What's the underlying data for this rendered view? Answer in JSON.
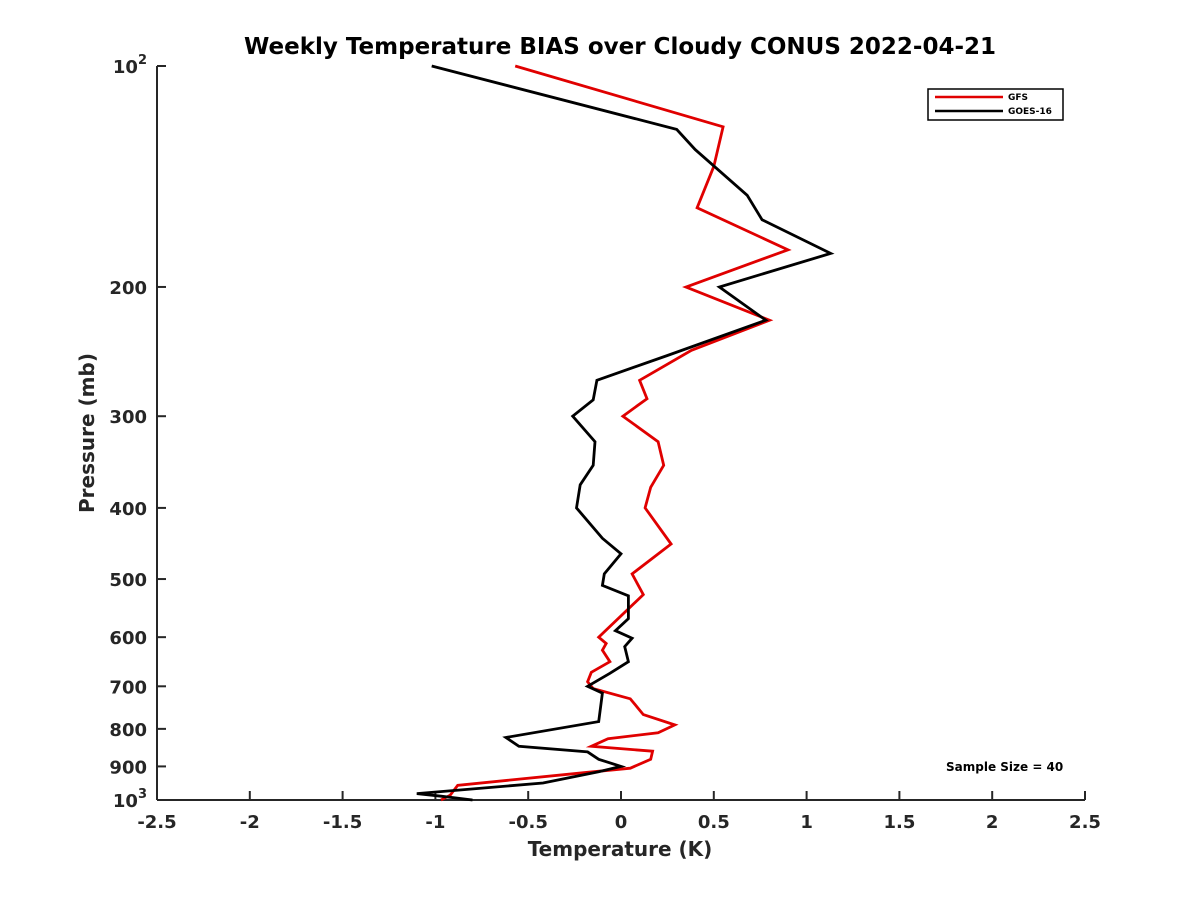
{
  "chart_data": {
    "type": "line",
    "title": "Weekly Temperature BIAS over Cloudy CONUS 2022-04-21",
    "xlabel": "Temperature (K)",
    "ylabel": "Pressure (mb)",
    "xlim": [
      -2.5,
      2.5
    ],
    "ylim": [
      1000,
      100
    ],
    "y_scale": "log",
    "y_reversed": true,
    "grid": false,
    "legend_position": "top-right",
    "x_ticks": [
      "-2.5",
      "-2",
      "-1.5",
      "-1",
      "-0.5",
      "0",
      "0.5",
      "1",
      "1.5",
      "2",
      "2.5"
    ],
    "x_tick_values": [
      -2.5,
      -2,
      -1.5,
      -1,
      -0.5,
      0,
      0.5,
      1,
      1.5,
      2,
      2.5
    ],
    "y_ticks": [
      {
        "value": 100,
        "base": "10",
        "exp": "2"
      },
      {
        "value": 200,
        "label": "200"
      },
      {
        "value": 300,
        "label": "300"
      },
      {
        "value": 400,
        "label": "400"
      },
      {
        "value": 500,
        "label": "500"
      },
      {
        "value": 600,
        "label": "600"
      },
      {
        "value": 700,
        "label": "700"
      },
      {
        "value": 800,
        "label": "800"
      },
      {
        "value": 900,
        "label": "900"
      },
      {
        "value": 1000,
        "base": "10",
        "exp": "3"
      }
    ],
    "series": [
      {
        "name": "GFS",
        "color": "#e00000",
        "points": [
          {
            "x": -0.57,
            "y": 100
          },
          {
            "x": 0.55,
            "y": 121
          },
          {
            "x": 0.5,
            "y": 137
          },
          {
            "x": 0.41,
            "y": 156
          },
          {
            "x": 0.9,
            "y": 178
          },
          {
            "x": 0.35,
            "y": 200
          },
          {
            "x": 0.8,
            "y": 222
          },
          {
            "x": 0.38,
            "y": 244
          },
          {
            "x": 0.1,
            "y": 268
          },
          {
            "x": 0.14,
            "y": 284
          },
          {
            "x": 0.01,
            "y": 300
          },
          {
            "x": 0.2,
            "y": 325
          },
          {
            "x": 0.23,
            "y": 350
          },
          {
            "x": 0.16,
            "y": 375
          },
          {
            "x": 0.13,
            "y": 400
          },
          {
            "x": 0.27,
            "y": 448
          },
          {
            "x": 0.06,
            "y": 492
          },
          {
            "x": 0.12,
            "y": 525
          },
          {
            "x": -0.12,
            "y": 600
          },
          {
            "x": -0.08,
            "y": 612
          },
          {
            "x": -0.1,
            "y": 625
          },
          {
            "x": -0.06,
            "y": 648
          },
          {
            "x": -0.16,
            "y": 670
          },
          {
            "x": -0.18,
            "y": 690
          },
          {
            "x": -0.15,
            "y": 705
          },
          {
            "x": 0.05,
            "y": 728
          },
          {
            "x": 0.12,
            "y": 765
          },
          {
            "x": 0.29,
            "y": 790
          },
          {
            "x": 0.2,
            "y": 810
          },
          {
            "x": -0.07,
            "y": 825
          },
          {
            "x": -0.16,
            "y": 845
          },
          {
            "x": 0.17,
            "y": 858
          },
          {
            "x": 0.16,
            "y": 880
          },
          {
            "x": 0.05,
            "y": 905
          },
          {
            "x": -0.2,
            "y": 918
          },
          {
            "x": -0.88,
            "y": 955
          },
          {
            "x": -0.92,
            "y": 985
          },
          {
            "x": -0.97,
            "y": 1000
          }
        ]
      },
      {
        "name": "GOES-16",
        "color": "#000000",
        "points": [
          {
            "x": -1.02,
            "y": 100
          },
          {
            "x": 0.3,
            "y": 122
          },
          {
            "x": 0.4,
            "y": 130
          },
          {
            "x": 0.68,
            "y": 150
          },
          {
            "x": 0.76,
            "y": 162
          },
          {
            "x": 1.13,
            "y": 180
          },
          {
            "x": 0.53,
            "y": 200
          },
          {
            "x": 0.78,
            "y": 222
          },
          {
            "x": 0.25,
            "y": 248
          },
          {
            "x": -0.13,
            "y": 268
          },
          {
            "x": -0.15,
            "y": 285
          },
          {
            "x": -0.26,
            "y": 300
          },
          {
            "x": -0.14,
            "y": 325
          },
          {
            "x": -0.15,
            "y": 350
          },
          {
            "x": -0.22,
            "y": 372
          },
          {
            "x": -0.24,
            "y": 400
          },
          {
            "x": -0.1,
            "y": 440
          },
          {
            "x": 0.0,
            "y": 462
          },
          {
            "x": -0.09,
            "y": 492
          },
          {
            "x": -0.1,
            "y": 510
          },
          {
            "x": 0.04,
            "y": 527
          },
          {
            "x": 0.04,
            "y": 566
          },
          {
            "x": -0.03,
            "y": 588
          },
          {
            "x": 0.06,
            "y": 602
          },
          {
            "x": 0.02,
            "y": 618
          },
          {
            "x": 0.04,
            "y": 648
          },
          {
            "x": -0.06,
            "y": 672
          },
          {
            "x": -0.18,
            "y": 700
          },
          {
            "x": -0.1,
            "y": 715
          },
          {
            "x": -0.12,
            "y": 782
          },
          {
            "x": -0.62,
            "y": 822
          },
          {
            "x": -0.55,
            "y": 845
          },
          {
            "x": -0.18,
            "y": 860
          },
          {
            "x": -0.12,
            "y": 880
          },
          {
            "x": 0.0,
            "y": 900
          },
          {
            "x": -0.12,
            "y": 915
          },
          {
            "x": -0.42,
            "y": 948
          },
          {
            "x": -1.1,
            "y": 980
          },
          {
            "x": -0.97,
            "y": 988
          },
          {
            "x": -0.8,
            "y": 1000
          }
        ]
      }
    ],
    "annotations": [
      "Sample Size = 40"
    ]
  }
}
